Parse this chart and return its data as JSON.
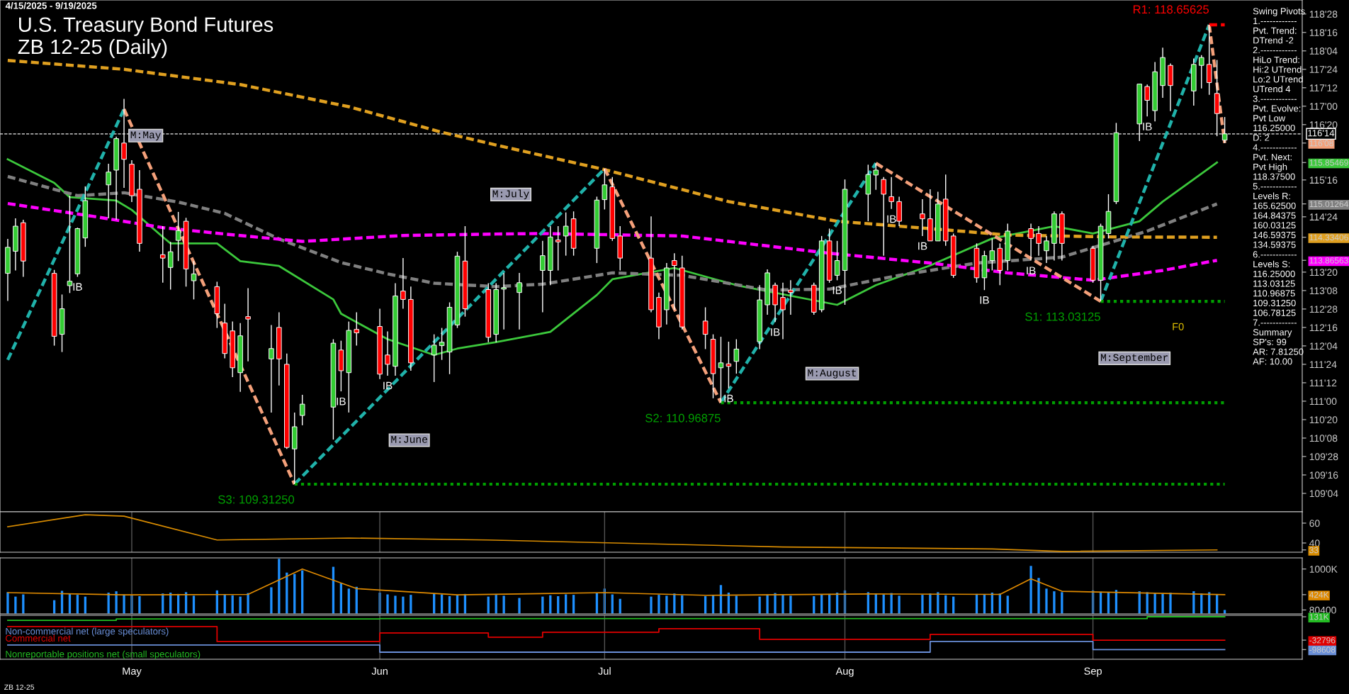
{
  "chart_data": [
    {
      "type": "candlestick",
      "title": "U.S. Treasury Bond Futures",
      "subtitle": "ZB 12-25 (Daily)",
      "x": [
        "2025-04-15",
        "2025-04-16",
        "2025-04-17",
        "2025-04-21",
        "2025-04-22",
        "2025-04-23",
        "2025-04-24",
        "2025-04-25",
        "2025-04-28",
        "2025-04-29",
        "2025-04-30",
        "2025-05-01",
        "2025-05-02",
        "2025-05-05",
        "2025-05-06",
        "2025-05-07",
        "2025-05-08",
        "2025-05-09",
        "2025-05-12",
        "2025-05-13",
        "2025-05-14",
        "2025-05-15",
        "2025-05-16",
        "2025-05-19",
        "2025-05-20",
        "2025-05-21",
        "2025-05-22",
        "2025-05-23",
        "2025-05-27",
        "2025-05-28",
        "2025-05-29",
        "2025-05-30",
        "2025-06-02",
        "2025-06-03",
        "2025-06-04",
        "2025-06-05",
        "2025-06-06",
        "2025-06-09",
        "2025-06-10",
        "2025-06-11",
        "2025-06-12",
        "2025-06-13",
        "2025-06-16",
        "2025-06-17",
        "2025-06-18",
        "2025-06-20",
        "2025-06-23",
        "2025-06-24",
        "2025-06-25",
        "2025-06-26",
        "2025-06-27",
        "2025-06-30",
        "2025-07-01",
        "2025-07-02",
        "2025-07-03",
        "2025-07-07",
        "2025-07-08",
        "2025-07-09",
        "2025-07-10",
        "2025-07-11",
        "2025-07-14",
        "2025-07-15",
        "2025-07-16",
        "2025-07-17",
        "2025-07-18",
        "2025-07-21",
        "2025-07-22",
        "2025-07-23",
        "2025-07-24",
        "2025-07-25",
        "2025-07-28",
        "2025-07-29",
        "2025-07-30",
        "2025-07-31",
        "2025-08-01",
        "2025-08-04",
        "2025-08-05",
        "2025-08-06",
        "2025-08-07",
        "2025-08-08",
        "2025-08-11",
        "2025-08-12",
        "2025-08-13",
        "2025-08-14",
        "2025-08-15",
        "2025-08-18",
        "2025-08-19",
        "2025-08-20",
        "2025-08-21",
        "2025-08-22",
        "2025-08-25",
        "2025-08-26",
        "2025-08-27",
        "2025-08-28",
        "2025-08-29",
        "2025-09-02",
        "2025-09-03",
        "2025-09-04",
        "2025-09-05",
        "2025-09-08",
        "2025-09-09",
        "2025-09-10",
        "2025-09-11",
        "2025-09-12",
        "2025-09-15",
        "2025-09-16",
        "2025-09-17",
        "2025-09-18",
        "2025-09-19"
      ],
      "ohlc": [
        [
          113.6,
          114.3,
          113.04,
          114.13
        ],
        [
          114.05,
          114.72,
          113.66,
          114.56
        ],
        [
          114.63,
          114.69,
          113.53,
          113.85
        ],
        [
          113.6,
          113.67,
          112.13,
          112.32
        ],
        [
          112.36,
          113.17,
          112.0,
          112.88
        ],
        [
          113.35,
          115.18,
          113.2,
          113.44
        ],
        [
          113.59,
          114.53,
          113.53,
          114.51
        ],
        [
          114.32,
          115.37,
          114.14,
          115.08
        ],
        [
          115.4,
          115.83,
          114.72,
          115.66
        ],
        [
          115.7,
          116.38,
          114.69,
          116.34
        ],
        [
          116.25,
          117.15,
          115.34,
          115.92
        ],
        [
          115.82,
          115.9,
          115.05,
          115.18
        ],
        [
          115.31,
          115.7,
          114.04,
          114.21
        ],
        [
          113.98,
          114.56,
          113.41,
          113.91
        ],
        [
          113.72,
          114.24,
          113.27,
          114.04
        ],
        [
          114.27,
          114.85,
          113.85,
          114.47
        ],
        [
          114.66,
          114.73,
          113.33,
          113.69
        ],
        [
          113.45,
          113.85,
          113.07,
          113.59
        ],
        [
          113.33,
          113.43,
          112.49,
          112.78
        ],
        [
          112.59,
          112.98,
          111.87,
          111.97
        ],
        [
          112.43,
          112.62,
          111.49,
          111.68
        ],
        [
          111.58,
          112.59,
          111.19,
          112.33
        ],
        [
          112.72,
          113.3,
          111.81,
          112.67
        ],
        [
          111.86,
          112.55,
          110.77,
          112.07
        ],
        [
          112.5,
          112.81,
          111.32,
          111.86
        ],
        [
          111.75,
          111.97,
          110.03,
          110.06
        ],
        [
          110.03,
          110.77,
          109.3125,
          110.48
        ],
        [
          110.71,
          111.13,
          110.51,
          110.94
        ],
        [
          110.88,
          112.26,
          110.22,
          112.18
        ],
        [
          112.04,
          112.23,
          111.2,
          111.62
        ],
        [
          111.58,
          112.62,
          110.77,
          112.44
        ],
        [
          112.46,
          112.81,
          112.13,
          112.39
        ],
        [
          112.52,
          112.88,
          111.45,
          111.55
        ],
        [
          111.94,
          112.42,
          111.52,
          111.75
        ],
        [
          111.71,
          113.4,
          111.52,
          113.14
        ],
        [
          113.24,
          113.91,
          112.88,
          113.07
        ],
        [
          113.07,
          113.33,
          111.62,
          111.78
        ],
        [
          111.94,
          112.36,
          111.39,
          112.14
        ],
        [
          112.13,
          112.49,
          111.84,
          112.2
        ],
        [
          112.0,
          113.01,
          111.55,
          112.91
        ],
        [
          112.55,
          114.04,
          112.49,
          113.95
        ],
        [
          113.85,
          114.56,
          112.72,
          112.88
        ],
        [
          113.27,
          113.4,
          112.2,
          112.3
        ],
        [
          112.36,
          113.4,
          112.2,
          113.27
        ],
        [
          113.28,
          113.61,
          112.46,
          113.31
        ],
        [
          113.21,
          113.61,
          112.46,
          113.41
        ],
        [
          113.66,
          114.26,
          112.81,
          113.96
        ],
        [
          113.66,
          114.56,
          113.36,
          114.34
        ],
        [
          114.28,
          114.56,
          113.66,
          114.24
        ],
        [
          114.36,
          114.84,
          113.96,
          114.56
        ],
        [
          114.71,
          114.86,
          113.96,
          114.11
        ],
        [
          114.11,
          115.16,
          113.81,
          115.09
        ],
        [
          115.1,
          115.73,
          114.9,
          115.4
        ],
        [
          115.36,
          115.56,
          114.26,
          114.31
        ],
        [
          114.36,
          114.56,
          113.66,
          113.91
        ],
        [
          113.91,
          114.76,
          112.81,
          112.86
        ],
        [
          113.11,
          113.21,
          112.26,
          112.51
        ],
        [
          112.86,
          113.81,
          112.56,
          113.71
        ],
        [
          113.86,
          114.01,
          112.86,
          113.76
        ],
        [
          113.71,
          113.96,
          112.46,
          112.51
        ],
        [
          112.63,
          112.91,
          112.06,
          112.36
        ],
        [
          112.26,
          112.36,
          111.06,
          111.56
        ],
        [
          111.68,
          112.31,
          110.96875,
          111.78
        ],
        [
          111.76,
          112.21,
          111.26,
          111.71
        ],
        [
          111.81,
          112.26,
          111.56,
          112.06
        ],
        [
          112.21,
          113.36,
          112.06,
          113.06
        ],
        [
          112.96,
          113.68,
          112.76,
          113.61
        ],
        [
          113.36,
          113.41,
          112.61,
          112.96
        ],
        [
          113.11,
          113.41,
          112.26,
          112.86
        ],
        [
          113.26,
          113.46,
          112.76,
          113.21
        ],
        [
          113.36,
          113.41,
          112.76,
          112.81
        ],
        [
          112.86,
          114.36,
          112.81,
          114.26
        ],
        [
          114.26,
          114.51,
          113.41,
          113.46
        ],
        [
          113.56,
          114.26,
          113.46,
          113.86
        ],
        [
          113.66,
          115.51,
          112.96,
          115.31
        ],
        [
          115.21,
          115.81,
          114.66,
          115.61
        ],
        [
          115.6,
          115.84,
          115.3,
          115.7
        ],
        [
          115.51,
          115.56,
          113.96,
          115.21
        ],
        [
          115.16,
          115.56,
          114.91,
          115.06
        ],
        [
          115.06,
          115.16,
          114.56,
          114.66
        ],
        [
          114.81,
          115.11,
          114.36,
          114.71
        ],
        [
          114.71,
          115.31,
          114.26,
          114.26
        ],
        [
          114.26,
          115.26,
          114.26,
          115.01
        ],
        [
          115.11,
          115.61,
          114.16,
          114.26
        ],
        [
          114.36,
          114.41,
          113.51,
          113.56
        ],
        [
          114.11,
          114.21,
          113.41,
          113.51
        ],
        [
          113.51,
          114.06,
          113.26,
          113.96
        ],
        [
          113.86,
          114.31,
          113.66,
          114.06
        ],
        [
          114.11,
          114.21,
          113.36,
          113.66
        ],
        [
          113.86,
          114.61,
          113.66,
          114.46
        ],
        [
          114.51,
          114.61,
          113.86,
          114.31
        ],
        [
          114.41,
          114.56,
          113.96,
          114.21
        ],
        [
          114.06,
          114.36,
          113.81,
          114.26
        ],
        [
          114.21,
          114.86,
          113.86,
          114.81
        ],
        [
          114.81,
          114.86,
          113.86,
          114.21
        ],
        [
          114.11,
          114.16,
          113.41,
          113.46
        ],
        [
          113.46,
          114.61,
          113.03125,
          114.56
        ],
        [
          114.41,
          115.21,
          114.31,
          114.86
        ],
        [
          115.06,
          116.66,
          115.01,
          116.46
        ],
        [
          116.64,
          117.46,
          116.29,
          117.45
        ],
        [
          117.4,
          117.44,
          116.79,
          117.12
        ],
        [
          116.91,
          117.9,
          116.69,
          117.7
        ],
        [
          117.42,
          118.19,
          117.17,
          117.99
        ],
        [
          117.83,
          117.87,
          116.9,
          117.42
        ],
        [
          117.31,
          117.97,
          117.01,
          117.85
        ],
        [
          117.83,
          118.04,
          117.36,
          117.99
        ],
        [
          117.85,
          118.65625,
          117.23,
          117.48
        ],
        [
          117.26,
          117.94,
          116.39,
          116.85
        ],
        [
          116.31,
          116.78,
          116.25,
          116.4375
        ]
      ],
      "series": [
        {
          "type": "line",
          "color": "#3cc83c",
          "line_style": "solid",
          "x": [
            "2025-04-15",
            "2025-04-21",
            "2025-04-23",
            "2025-04-29",
            "2025-05-01",
            "2025-05-05",
            "2025-05-06",
            "2025-05-12",
            "2025-05-15",
            "2025-05-20",
            "2025-05-27",
            "2025-05-28",
            "2025-06-03",
            "2025-06-09",
            "2025-06-12",
            "2025-06-17",
            "2025-06-24",
            "2025-06-30",
            "2025-07-02",
            "2025-07-10",
            "2025-07-18",
            "2025-07-31",
            "2025-08-05",
            "2025-08-12",
            "2025-08-20",
            "2025-08-28",
            "2025-09-02",
            "2025-09-08",
            "2025-09-11",
            "2025-09-18"
          ],
          "values": [
            115.92,
            115.44,
            115.15,
            115.08,
            114.89,
            114.34,
            114.21,
            114.21,
            113.85,
            113.75,
            113.07,
            112.78,
            112.26,
            111.94,
            112.07,
            112.2,
            112.41,
            113.16,
            113.48,
            113.71,
            113.36,
            112.96,
            113.36,
            113.76,
            114.31,
            114.56,
            114.41,
            114.66,
            115.06,
            115.85469
          ]
        },
        {
          "type": "line",
          "color": "#808080",
          "line_style": "dashed",
          "x": [
            "2025-04-15",
            "2025-04-21",
            "2025-04-24",
            "2025-04-30",
            "2025-05-07",
            "2025-05-13",
            "2025-05-20",
            "2025-05-28",
            "2025-06-03",
            "2025-06-09",
            "2025-06-17",
            "2025-06-23",
            "2025-07-02",
            "2025-07-11",
            "2025-07-22",
            "2025-07-30",
            "2025-08-08",
            "2025-08-18",
            "2025-08-29",
            "2025-09-09",
            "2025-09-18"
          ],
          "values": [
            115.57,
            115.31,
            115.18,
            115.24,
            115.05,
            114.82,
            114.3,
            113.82,
            113.59,
            113.4,
            113.33,
            113.38,
            113.61,
            113.56,
            113.26,
            113.28,
            113.56,
            113.81,
            113.93,
            114.46,
            115.01264
          ]
        },
        {
          "type": "line",
          "color": "#ff00ff",
          "line_style": "dashed",
          "x": [
            "2025-04-15",
            "2025-04-26",
            "2025-05-05",
            "2025-05-13",
            "2025-05-23",
            "2025-06-05",
            "2025-06-17",
            "2025-06-23",
            "2025-07-11",
            "2025-07-30",
            "2025-08-12",
            "2025-08-22",
            "2025-09-02",
            "2025-09-11",
            "2025-09-18"
          ],
          "values": [
            115.02,
            114.76,
            114.53,
            114.4,
            114.25,
            114.37,
            114.4,
            114.41,
            114.36,
            114.01,
            113.81,
            113.61,
            113.46,
            113.66,
            113.86563
          ]
        },
        {
          "type": "line",
          "color": "#e0a020",
          "line_style": "dashed",
          "x": [
            "2025-04-15",
            "2025-04-30",
            "2025-05-15",
            "2025-05-29",
            "2025-06-10",
            "2025-06-17",
            "2025-07-01",
            "2025-07-17",
            "2025-07-31",
            "2025-08-12",
            "2025-08-22",
            "2025-09-05",
            "2025-09-18"
          ],
          "values": [
            117.93,
            117.75,
            117.44,
            116.99,
            116.47,
            116.21,
            115.71,
            115.06,
            114.66,
            114.51,
            114.38,
            114.34,
            114.33406
          ]
        },
        {
          "type": "line",
          "color": "#20b2aa",
          "line_style": "dashed",
          "x": [
            "2025-04-15",
            "2025-04-30",
            "2025-05-12",
            "2025-05-22",
            "2025-07-01",
            "2025-07-08",
            "2025-07-16",
            "2025-08-05",
            "2025-08-19",
            "2025-09-03",
            "2025-09-17"
          ],
          "values": [
            111.84,
            116.94,
            null,
            109.3125,
            115.73,
            null,
            110.96875,
            115.84,
            null,
            113.03125,
            118.65625
          ]
        },
        {
          "type": "line",
          "color": "#f4a07a",
          "line_style": "dashed",
          "x": [
            "2025-04-30",
            "2025-05-22",
            "2025-06-10",
            "2025-07-01",
            "2025-07-16",
            "2025-07-25",
            "2025-08-05",
            "2025-09-03",
            "2025-09-10",
            "2025-09-17",
            "2025-09-19"
          ],
          "values": [
            116.94,
            109.3125,
            null,
            115.73,
            110.96875,
            null,
            115.84,
            113.03125,
            null,
            118.65625,
            116.25
          ]
        },
        {
          "type": "line",
          "name": "S3: 109.31250",
          "color": "#00a000",
          "line_style": "dotted",
          "x": [
            "2025-05-22",
            "2025-09-19"
          ],
          "values": [
            109.3125,
            109.3125
          ]
        },
        {
          "type": "line",
          "name": "S2: 110.96875",
          "color": "#00a000",
          "line_style": "dotted",
          "x": [
            "2025-07-16",
            "2025-09-19"
          ],
          "values": [
            110.96875,
            110.96875
          ]
        },
        {
          "type": "line",
          "name": "S1: 113.03125",
          "color": "#00a000",
          "line_style": "dotted",
          "x": [
            "2025-09-03",
            "2025-09-19"
          ],
          "values": [
            113.03125,
            113.03125
          ]
        },
        {
          "type": "line",
          "name": "R1: 118.65625",
          "color": "#ff0000",
          "line_style": "dashed",
          "x": [
            "2025-09-17",
            "2025-09-19"
          ],
          "values": [
            118.65625,
            118.65625
          ]
        }
      ],
      "ref_lines": [
        {
          "axis": "y",
          "value": 116.4375,
          "label": "116'14",
          "color": "#aaaaaa",
          "line_style": "dashed"
        }
      ],
      "xlim": [
        "2025-04-14",
        "2025-09-29"
      ],
      "ylim": [
        108.75,
        119.16
      ],
      "yticks": [
        {
          "value": 109.125,
          "label": "109'04"
        },
        {
          "value": 109.5,
          "label": "109'16"
        },
        {
          "value": 109.875,
          "label": "109'28"
        },
        {
          "value": 110.25,
          "label": "110'08"
        },
        {
          "value": 110.625,
          "label": "110'20"
        },
        {
          "value": 111.0,
          "label": "111'00"
        },
        {
          "value": 111.375,
          "label": "111'12"
        },
        {
          "value": 111.75,
          "label": "111'24"
        },
        {
          "value": 112.125,
          "label": "112'04"
        },
        {
          "value": 112.5,
          "label": "112'16"
        },
        {
          "value": 112.875,
          "label": "112'28"
        },
        {
          "value": 113.25,
          "label": "113'08"
        },
        {
          "value": 113.625,
          "label": "113'20"
        },
        {
          "value": 114.75,
          "label": "114'24"
        },
        {
          "value": 115.5,
          "label": "115'16"
        },
        {
          "value": 116.25,
          "label": "116'08"
        },
        {
          "value": 116.625,
          "label": "116'20"
        },
        {
          "value": 117.0,
          "label": "117'00"
        },
        {
          "value": 117.375,
          "label": "117'12"
        },
        {
          "value": 117.75,
          "label": "117'24"
        },
        {
          "value": 118.125,
          "label": "118'04"
        },
        {
          "value": 118.5,
          "label": "118'16"
        },
        {
          "value": 118.875,
          "label": "118'28"
        },
        {
          "value": 115.85469,
          "label": "115.85469"
        },
        {
          "value": 115.01264,
          "label": "115.01264"
        },
        {
          "value": 114.33406,
          "label": "114.33406"
        },
        {
          "value": 113.86563,
          "label": "113.86563"
        }
      ],
      "tick_labels": "y",
      "annotations": [
        "4/15/2025 - 9/19/2025",
        "Swing Pivots\n1.------------\nPvt. Trend:\nDTrend -2\n2.------------\nHiLo Trend:\nHi:2 UTrend\nLo:2 UTrend\nUTrend 4\n3.------------\nPvt. Evolve:\nPvt Low\n116.25000\nD: 2\n4.------------\nPvt. Next:\nPvt High\n118.37500\n5.------------\nLevels R:\n165.62500\n164.84375\n160.03125\n146.59375\n134.59375\n6.------------\nLevels S:\n116.25000\n113.03125\n110.96875\n109.31250\n106.78125\n7.------------\nSummary\nSP's: 99\nAR: 7.81250\nAF: 10.00",
        "ZB 12-25",
        "M:May",
        "M:June",
        "M:July",
        "M:August",
        "M:September",
        "F0",
        {
          "text": "IB",
          "x": "2025-04-24",
          "y": 113.53
        },
        {
          "text": "IB",
          "x": "2025-05-28",
          "y": 111.2
        },
        {
          "text": "IB",
          "x": "2025-06-03",
          "y": 111.52
        },
        {
          "text": "IB",
          "x": "2025-07-17",
          "y": 111.26
        },
        {
          "text": "IB",
          "x": "2025-07-23",
          "y": 112.61
        },
        {
          "text": "IB",
          "x": "2025-07-31",
          "y": 113.46
        },
        {
          "text": "IB",
          "x": "2025-08-07",
          "y": 114.91
        },
        {
          "text": "IB",
          "x": "2025-08-11",
          "y": 114.36
        },
        {
          "text": "IB",
          "x": "2025-08-19",
          "y": 113.26
        },
        {
          "text": "IB",
          "x": "2025-08-25",
          "y": 113.86
        },
        {
          "text": "IB",
          "x": "2025-09-09",
          "y": 116.79
        }
      ],
      "grid": false
    },
    {
      "type": "line",
      "series": [
        {
          "color": "#d98c00",
          "x": [
            "2025-04-15",
            "2025-04-25",
            "2025-04-30",
            "2025-05-12",
            "2025-05-29",
            "2025-06-16",
            "2025-07-24",
            "2025-08-20",
            "2025-08-29",
            "2025-09-18"
          ],
          "values": [
            56.4,
            68.5,
            67,
            43,
            45,
            43,
            36,
            34,
            31.5,
            33
          ]
        }
      ],
      "xlim": [
        "2025-04-14",
        "2025-09-29"
      ],
      "ylim": [
        30.7,
        71.4
      ],
      "yticks": [
        40,
        60,
        {
          "value": 33,
          "label": "33"
        }
      ],
      "tick_labels": "y",
      "grid": "x",
      "xticks": [
        {
          "value": "2025-05-01",
          "label": null
        },
        {
          "value": "2025-06-02",
          "label": null
        },
        {
          "value": "2025-07-01",
          "label": null
        },
        {
          "value": "2025-08-01",
          "label": null
        },
        {
          "value": "2025-09-02",
          "label": null
        }
      ]
    },
    {
      "type": "bar",
      "x": [
        "2025-04-15",
        "2025-04-16",
        "2025-04-17",
        "2025-04-21",
        "2025-04-22",
        "2025-04-23",
        "2025-04-24",
        "2025-04-25",
        "2025-04-28",
        "2025-04-29",
        "2025-04-30",
        "2025-05-01",
        "2025-05-02",
        "2025-05-05",
        "2025-05-06",
        "2025-05-07",
        "2025-05-08",
        "2025-05-09",
        "2025-05-12",
        "2025-05-13",
        "2025-05-14",
        "2025-05-15",
        "2025-05-16",
        "2025-05-19",
        "2025-05-20",
        "2025-05-21",
        "2025-05-22",
        "2025-05-23",
        "2025-05-27",
        "2025-05-28",
        "2025-05-29",
        "2025-05-30",
        "2025-06-02",
        "2025-06-03",
        "2025-06-04",
        "2025-06-05",
        "2025-06-06",
        "2025-06-09",
        "2025-06-10",
        "2025-06-11",
        "2025-06-12",
        "2025-06-13",
        "2025-06-16",
        "2025-06-17",
        "2025-06-18",
        "2025-06-20",
        "2025-06-23",
        "2025-06-24",
        "2025-06-25",
        "2025-06-26",
        "2025-06-27",
        "2025-06-30",
        "2025-07-01",
        "2025-07-02",
        "2025-07-03",
        "2025-07-07",
        "2025-07-08",
        "2025-07-09",
        "2025-07-10",
        "2025-07-11",
        "2025-07-14",
        "2025-07-15",
        "2025-07-16",
        "2025-07-17",
        "2025-07-18",
        "2025-07-21",
        "2025-07-22",
        "2025-07-23",
        "2025-07-24",
        "2025-07-25",
        "2025-07-28",
        "2025-07-29",
        "2025-07-30",
        "2025-07-31",
        "2025-08-01",
        "2025-08-04",
        "2025-08-05",
        "2025-08-06",
        "2025-08-07",
        "2025-08-08",
        "2025-08-11",
        "2025-08-12",
        "2025-08-13",
        "2025-08-14",
        "2025-08-15",
        "2025-08-18",
        "2025-08-19",
        "2025-08-20",
        "2025-08-21",
        "2025-08-22",
        "2025-08-25",
        "2025-08-26",
        "2025-08-27",
        "2025-08-28",
        "2025-08-29",
        "2025-09-02",
        "2025-09-03",
        "2025-09-04",
        "2025-09-05",
        "2025-09-08",
        "2025-09-09",
        "2025-09-10",
        "2025-09-11",
        "2025-09-12",
        "2025-09-15",
        "2025-09-16",
        "2025-09-17",
        "2025-09-18",
        "2025-09-19"
      ],
      "series": [
        {
          "type": "bar",
          "color": "#1e90ff",
          "values": [
            480000,
            380000,
            430000,
            300000,
            510000,
            450000,
            420000,
            380000,
            470000,
            500000,
            430000,
            420000,
            390000,
            450000,
            470000,
            440000,
            480000,
            400000,
            520000,
            430000,
            410000,
            380000,
            460000,
            590000,
            1230000,
            920000,
            890000,
            970000,
            1050000,
            680000,
            560000,
            600000,
            470000,
            430000,
            400000,
            380000,
            420000,
            450000,
            430000,
            390000,
            410000,
            440000,
            380000,
            420000,
            400000,
            350000,
            380000,
            410000,
            390000,
            430000,
            420000,
            470000,
            560000,
            430000,
            330000,
            380000,
            420000,
            400000,
            450000,
            410000,
            390000,
            420000,
            640000,
            470000,
            400000,
            380000,
            430000,
            460000,
            420000,
            400000,
            390000,
            430000,
            440000,
            470000,
            520000,
            480000,
            450000,
            430000,
            460000,
            400000,
            420000,
            450000,
            480000,
            410000,
            380000,
            440000,
            430000,
            470000,
            450000,
            400000,
            1070000,
            800000,
            560000,
            500000,
            480000,
            520000,
            490000,
            470000,
            530000,
            500000,
            480000,
            460000,
            440000,
            470000,
            500000,
            450000,
            480000,
            430000,
            80400
          ]
        },
        {
          "type": "line",
          "color": "#e08a00",
          "x": [
            "2025-04-15",
            "2025-04-30",
            "2025-05-16",
            "2025-05-23",
            "2025-05-30",
            "2025-06-12",
            "2025-07-01",
            "2025-07-14",
            "2025-08-04",
            "2025-08-21",
            "2025-08-25",
            "2025-08-29",
            "2025-09-19"
          ],
          "values": [
            470000,
            420000,
            430000,
            1000000,
            560000,
            420000,
            470000,
            410000,
            440000,
            430000,
            780000,
            500000,
            424000
          ]
        }
      ],
      "xlim": [
        "2025-04-14",
        "2025-09-29"
      ],
      "ylim": [
        -8000,
        1250000
      ],
      "yticks": [
        {
          "value": 1000000,
          "label": "1000K"
        },
        {
          "value": 424000,
          "label": "424K"
        },
        {
          "value": 80400,
          "label": "80400"
        }
      ],
      "tick_labels": "y",
      "grid": "x",
      "xticks": [
        {
          "value": "2025-05-01",
          "label": null
        },
        {
          "value": "2025-06-02",
          "label": null
        },
        {
          "value": "2025-07-01",
          "label": null
        },
        {
          "value": "2025-08-01",
          "label": null
        },
        {
          "value": "2025-09-02",
          "label": null
        }
      ]
    },
    {
      "type": "step",
      "series": [
        {
          "name": "Non-commercial net (large speculators)",
          "color": "#6a8fd8",
          "x": [
            "2025-04-15",
            "2025-06-02",
            "2025-08-12",
            "2025-09-02",
            "2025-09-19"
          ],
          "values": [
            -67000,
            -117000,
            -42000,
            -98608,
            -98608
          ]
        },
        {
          "name": "Commercial net",
          "color": "#e00000",
          "x": [
            "2025-04-15",
            "2025-05-12",
            "2025-06-02",
            "2025-06-16",
            "2025-06-23",
            "2025-07-08",
            "2025-07-21",
            "2025-08-12",
            "2025-09-02",
            "2025-09-19"
          ],
          "values": [
            62000,
            -42000,
            18000,
            -12000,
            23000,
            47000,
            -27000,
            8000,
            -32796,
            -32796
          ]
        },
        {
          "name": "Nonreportable positions net (small speculators)",
          "color": "#22bb22",
          "x": [
            "2025-04-15",
            "2025-04-29",
            "2025-06-02",
            "2025-09-09",
            "2025-09-19"
          ],
          "values": [
            106000,
            116000,
            118000,
            131000,
            131000
          ]
        }
      ],
      "xlim": [
        "2025-04-14",
        "2025-09-29"
      ],
      "ylim": [
        -166600,
        141000
      ],
      "xticks": [
        {
          "value": "2025-05-01",
          "label": "May"
        },
        {
          "value": "2025-06-02",
          "label": "Jun"
        },
        {
          "value": "2025-07-01",
          "label": "Jul"
        },
        {
          "value": "2025-08-01",
          "label": "Aug"
        },
        {
          "value": "2025-09-02",
          "label": "Sep"
        }
      ],
      "yticks": [
        {
          "value": 131000,
          "label": "131K"
        },
        {
          "value": -32796,
          "label": "-32796"
        },
        {
          "value": -98608,
          "label": "-98608"
        }
      ],
      "legend": "left",
      "grid": "x"
    }
  ]
}
